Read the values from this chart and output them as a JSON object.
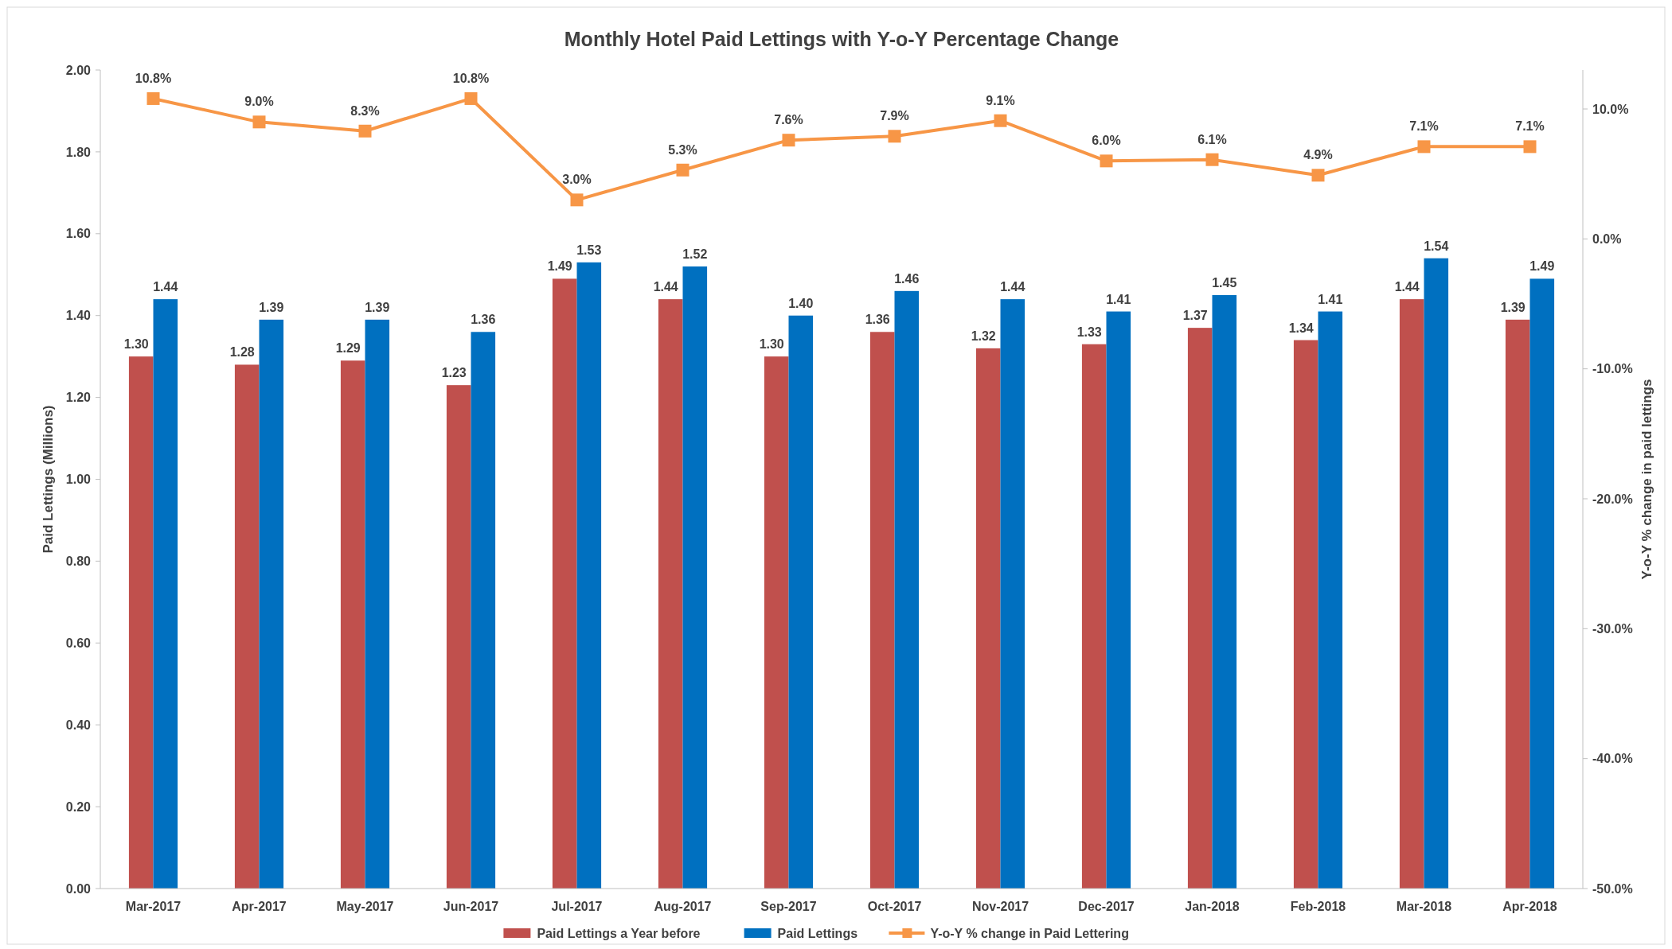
{
  "chart_data": {
    "type": "bar",
    "title": "Monthly Hotel Paid Lettings with Y-o-Y Percentage Change",
    "ylabel": "Paid Lettings (Millions)",
    "y2label": "Y-o-Y % change in paid lettings",
    "categories": [
      "Mar-2017",
      "Apr-2017",
      "May-2017",
      "Jun-2017",
      "Jul-2017",
      "Aug-2017",
      "Sep-2017",
      "Oct-2017",
      "Nov-2017",
      "Dec-2017",
      "Jan-2018",
      "Feb-2018",
      "Mar-2018",
      "Apr-2018"
    ],
    "series": [
      {
        "name": "Paid Lettings a Year before",
        "color": "#c0504d",
        "values": [
          1.3,
          1.28,
          1.29,
          1.23,
          1.49,
          1.44,
          1.3,
          1.36,
          1.32,
          1.33,
          1.37,
          1.34,
          1.44,
          1.39
        ],
        "value_labels": [
          "1.30",
          "1.28",
          "1.29",
          "1.23",
          "1.49",
          "1.44",
          "1.30",
          "1.36",
          "1.32",
          "1.33",
          "1.37",
          "1.34",
          "1.44",
          "1.39"
        ]
      },
      {
        "name": "Paid Lettings",
        "color": "#0070c0",
        "values": [
          1.44,
          1.39,
          1.39,
          1.36,
          1.53,
          1.52,
          1.4,
          1.46,
          1.44,
          1.41,
          1.45,
          1.41,
          1.54,
          1.49
        ],
        "value_labels": [
          "1.44",
          "1.39",
          "1.39",
          "1.36",
          "1.53",
          "1.52",
          "1.40",
          "1.46",
          "1.44",
          "1.41",
          "1.45",
          "1.41",
          "1.54",
          "1.49"
        ]
      },
      {
        "name": "Y-o-Y % change in Paid Lettering",
        "type": "line",
        "axis": "y2",
        "color": "#f79646",
        "marker": "square",
        "values": [
          10.8,
          9.0,
          8.3,
          10.8,
          3.0,
          5.3,
          7.6,
          7.9,
          9.1,
          6.0,
          6.1,
          4.9,
          7.1,
          7.1
        ],
        "value_labels": [
          "10.8%",
          "9.0%",
          "8.3%",
          "10.8%",
          "3.0%",
          "5.3%",
          "7.6%",
          "7.9%",
          "9.1%",
          "6.0%",
          "6.1%",
          "4.9%",
          "7.1%",
          "7.1%"
        ]
      }
    ],
    "ylim": [
      0,
      2
    ],
    "yticks": [
      {
        "value": 0,
        "label": "0.00"
      },
      {
        "value": 0.2,
        "label": "0.20"
      },
      {
        "value": 0.4,
        "label": "0.40"
      },
      {
        "value": 0.6,
        "label": "0.60"
      },
      {
        "value": 0.8,
        "label": "0.80"
      },
      {
        "value": 1,
        "label": "1.00"
      },
      {
        "value": 1.2,
        "label": "1.20"
      },
      {
        "value": 1.4,
        "label": "1.40"
      },
      {
        "value": 1.6,
        "label": "1.60"
      },
      {
        "value": 1.8,
        "label": "1.80"
      },
      {
        "value": 2,
        "label": "2.00"
      }
    ],
    "y2lim": [
      -50,
      13
    ],
    "y2ticks": [
      {
        "value": -50,
        "label": "-50.0%"
      },
      {
        "value": -40,
        "label": "-40.0%"
      },
      {
        "value": -30,
        "label": "-30.0%"
      },
      {
        "value": -20,
        "label": "-20.0%"
      },
      {
        "value": -10,
        "label": "-10.0%"
      },
      {
        "value": 0,
        "label": "0.0%"
      },
      {
        "value": 10,
        "label": "10.0%"
      }
    ],
    "legend": "bottom",
    "grid": false
  }
}
